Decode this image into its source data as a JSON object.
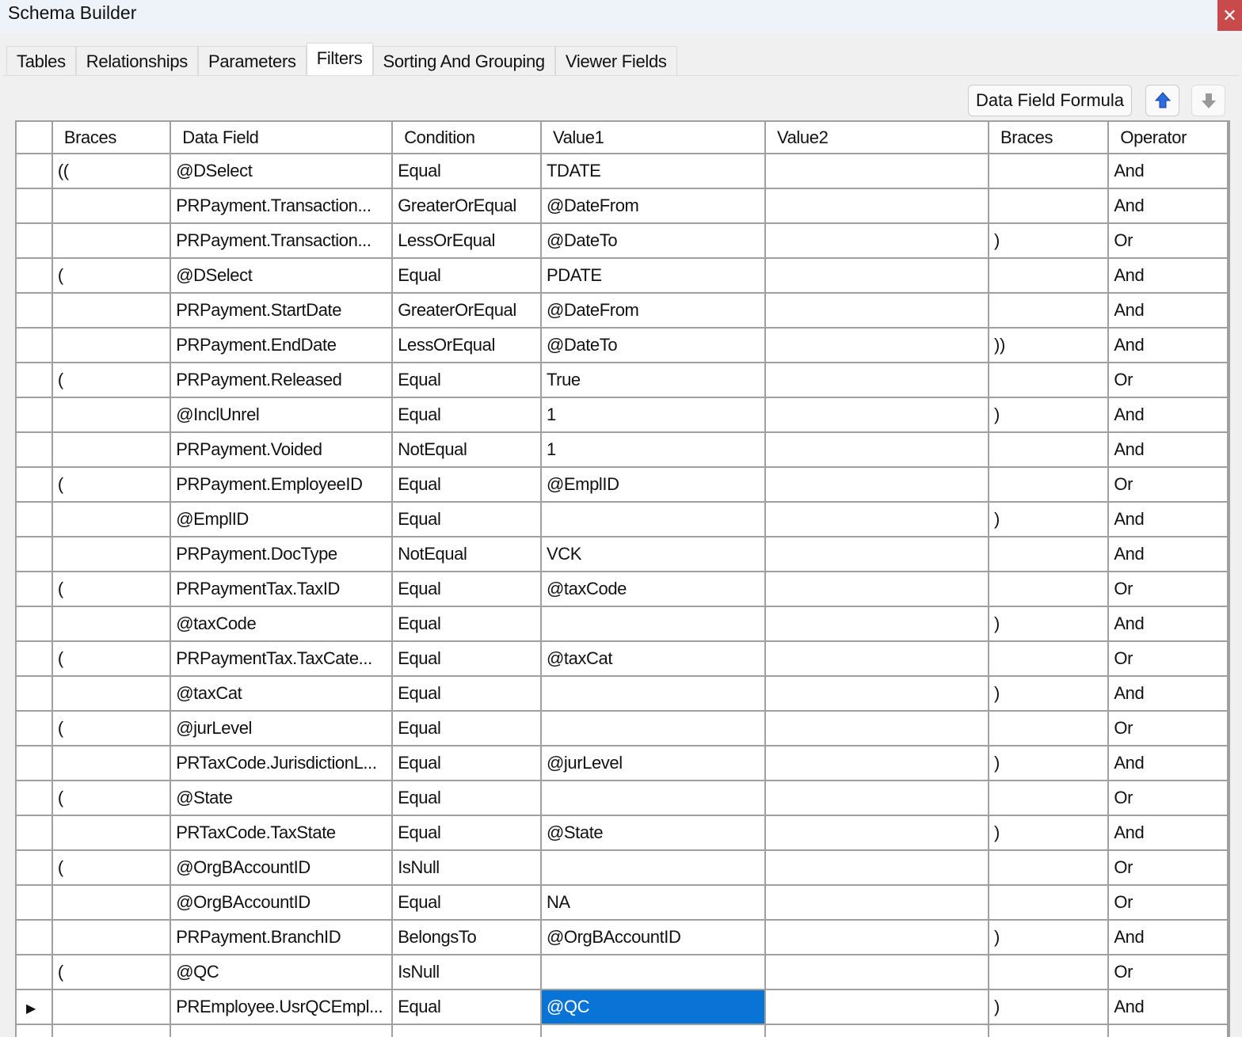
{
  "window": {
    "title": "Schema Builder",
    "close_icon": "close-icon"
  },
  "tabs": [
    "Tables",
    "Relationships",
    "Parameters",
    "Filters",
    "Sorting And Grouping",
    "Viewer Fields"
  ],
  "active_tab": "Filters",
  "toolbar": {
    "formula_label": "Data Field Formula",
    "up_icon": "arrow-up-icon",
    "down_icon": "arrow-down-icon",
    "up_color": "#2a6de0"
  },
  "grid": {
    "columns": [
      "",
      "Braces",
      "Data Field",
      "Condition",
      "Value1",
      "Value2",
      "Braces",
      "Operator"
    ],
    "selected_row": 24,
    "selected_color": "#0a74d6",
    "rows": [
      [
        "((",
        "@DSelect",
        "Equal",
        "TDATE",
        "",
        "",
        "And"
      ],
      [
        "",
        "PRPayment.Transaction...",
        "GreaterOrEqual",
        "@DateFrom",
        "",
        "",
        "And"
      ],
      [
        "",
        "PRPayment.Transaction...",
        "LessOrEqual",
        "@DateTo",
        "",
        ")",
        "Or"
      ],
      [
        "(",
        "@DSelect",
        "Equal",
        "PDATE",
        "",
        "",
        "And"
      ],
      [
        "",
        "PRPayment.StartDate",
        "GreaterOrEqual",
        "@DateFrom",
        "",
        "",
        "And"
      ],
      [
        "",
        "PRPayment.EndDate",
        "LessOrEqual",
        "@DateTo",
        "",
        "))",
        "And"
      ],
      [
        "(",
        "PRPayment.Released",
        "Equal",
        "True",
        "",
        "",
        "Or"
      ],
      [
        "",
        "@InclUnrel",
        "Equal",
        "1",
        "",
        ")",
        "And"
      ],
      [
        "",
        "PRPayment.Voided",
        "NotEqual",
        "1",
        "",
        "",
        "And"
      ],
      [
        "(",
        "PRPayment.EmployeeID",
        "Equal",
        "@EmplID",
        "",
        "",
        "Or"
      ],
      [
        "",
        "@EmplID",
        "Equal",
        "",
        "",
        ")",
        "And"
      ],
      [
        "",
        "PRPayment.DocType",
        "NotEqual",
        "VCK",
        "",
        "",
        "And"
      ],
      [
        "(",
        "PRPaymentTax.TaxID",
        "Equal",
        "@taxCode",
        "",
        "",
        "Or"
      ],
      [
        "",
        "@taxCode",
        "Equal",
        "",
        "",
        ")",
        "And"
      ],
      [
        "(",
        "PRPaymentTax.TaxCate...",
        "Equal",
        "@taxCat",
        "",
        "",
        "Or"
      ],
      [
        "",
        "@taxCat",
        "Equal",
        "",
        "",
        ")",
        "And"
      ],
      [
        "(",
        "@jurLevel",
        "Equal",
        "",
        "",
        "",
        "Or"
      ],
      [
        "",
        "PRTaxCode.JurisdictionL...",
        "Equal",
        "@jurLevel",
        "",
        ")",
        "And"
      ],
      [
        "(",
        "@State",
        "Equal",
        "",
        "",
        "",
        "Or"
      ],
      [
        "",
        "PRTaxCode.TaxState",
        "Equal",
        "@State",
        "",
        ")",
        "And"
      ],
      [
        "(",
        "@OrgBAccountID",
        "IsNull",
        "",
        "",
        "",
        "Or"
      ],
      [
        "",
        "@OrgBAccountID",
        "Equal",
        "NA",
        "",
        "",
        "Or"
      ],
      [
        "",
        "PRPayment.BranchID",
        "BelongsTo",
        "@OrgBAccountID",
        "",
        ")",
        "And"
      ],
      [
        "(",
        "@QC",
        "IsNull",
        "",
        "",
        "",
        "Or"
      ],
      [
        "",
        "PREmployee.UsrQCEmpl...",
        "Equal",
        "@QC",
        "",
        ")",
        "And"
      ]
    ]
  }
}
